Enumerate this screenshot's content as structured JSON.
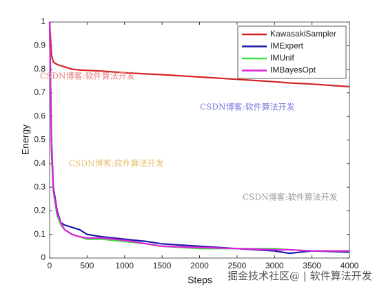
{
  "chart_data": {
    "type": "line",
    "xlabel": "Steps",
    "ylabel": "Energy",
    "x": [
      0,
      25,
      50,
      100,
      150,
      200,
      300,
      400,
      500,
      700,
      1000,
      1300,
      1500,
      2000,
      2500,
      3000,
      3200,
      3500,
      4000
    ],
    "series": [
      {
        "name": "KawasakiSampler",
        "color": "#d42222",
        "values": [
          1,
          0.86,
          0.83,
          0.82,
          0.815,
          0.81,
          0.8,
          0.797,
          0.795,
          0.792,
          0.785,
          0.78,
          0.777,
          0.767,
          0.757,
          0.747,
          0.742,
          0.737,
          0.726
        ]
      },
      {
        "name": "IMExpert",
        "color": "#1c1caa",
        "values": [
          1,
          0.5,
          0.3,
          0.2,
          0.15,
          0.14,
          0.13,
          0.12,
          0.1,
          0.09,
          0.08,
          0.07,
          0.06,
          0.05,
          0.04,
          0.03,
          0.02,
          0.03,
          0.025
        ]
      },
      {
        "name": "IMUnif",
        "color": "#40e040",
        "values": [
          1,
          0.45,
          0.28,
          0.18,
          0.14,
          0.12,
          0.1,
          0.09,
          0.08,
          0.08,
          0.07,
          0.06,
          0.05,
          0.04,
          0.04,
          0.04,
          0.035,
          0.03,
          0.03
        ]
      },
      {
        "name": "IMBayesOpt",
        "color": "#e020e0",
        "values": [
          1,
          0.47,
          0.29,
          0.19,
          0.15,
          0.12,
          0.1,
          0.09,
          0.085,
          0.085,
          0.075,
          0.06,
          0.05,
          0.045,
          0.04,
          0.035,
          0.035,
          0.03,
          0.03
        ]
      }
    ],
    "xlim": [
      0,
      4000
    ],
    "xticks": [
      0,
      500,
      1000,
      1500,
      2000,
      2500,
      3000,
      3500,
      4000
    ],
    "ylim": [
      0,
      1
    ],
    "yticks": [
      0,
      0.1,
      0.2,
      0.3,
      0.4,
      0.5,
      0.6,
      0.7,
      0.8,
      0.9,
      1
    ],
    "legend": "upper right",
    "watermarks": [
      "CSDN博客:软件算法开发",
      "CSDN博客:软件算法开发",
      "CSDN博客:软件算法开发",
      "CSDN博客:软件算法开发",
      "掘金技术社区@ | 软件算法开发"
    ]
  }
}
